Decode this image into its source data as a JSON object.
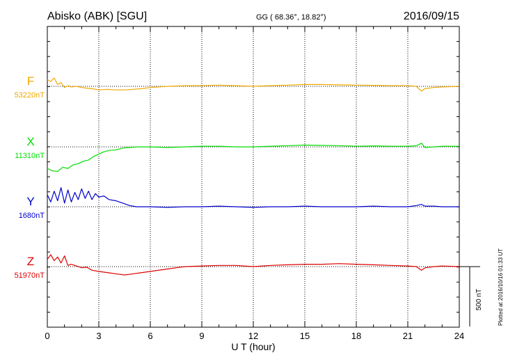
{
  "header": {
    "station": "Abisko (ABK)  [SGU]",
    "coords": "GG ( 68.36°,  18.82°)",
    "date": "2016/09/15"
  },
  "plotted_note": "Plotted at 2016/10/16 01:33 UT",
  "scale_label": "500 nT",
  "chart_data": {
    "type": "line",
    "xlabel": "U T (hour)",
    "xlim": [
      0,
      24
    ],
    "xticks": [
      "0",
      "3",
      "6",
      "9",
      "12",
      "15",
      "18",
      "21",
      "24"
    ],
    "scale_nT": 500,
    "series": [
      {
        "name": "F",
        "baseline_label": "53220nT",
        "color": "#f0a800",
        "x": [
          0,
          0.2,
          0.4,
          0.6,
          0.8,
          1.0,
          1.2,
          1.4,
          1.7,
          2.0,
          2.3,
          2.6,
          3.0,
          3.5,
          4.0,
          4.5,
          5.0,
          5.5,
          6.0,
          7.0,
          8.0,
          9.0,
          10.0,
          11.0,
          12.0,
          13.0,
          14.0,
          15.0,
          16.0,
          17.0,
          18.0,
          19.0,
          20.0,
          21.0,
          21.5,
          21.8,
          22.0,
          22.5,
          23.0,
          24.0
        ],
        "values": [
          55,
          40,
          70,
          15,
          30,
          -10,
          5,
          -5,
          0,
          -10,
          -15,
          -20,
          -30,
          -25,
          -30,
          -30,
          -25,
          -20,
          -10,
          0,
          5,
          5,
          10,
          5,
          0,
          5,
          10,
          15,
          15,
          12,
          10,
          8,
          5,
          5,
          0,
          -40,
          -20,
          -10,
          -5,
          0
        ]
      },
      {
        "name": "X",
        "baseline_label": "11310nT",
        "color": "#00dd00",
        "x": [
          0,
          0.3,
          0.6,
          0.9,
          1.2,
          1.5,
          1.8,
          2.1,
          2.4,
          2.7,
          3.0,
          3.3,
          3.6,
          4.0,
          4.4,
          4.8,
          5.2,
          5.6,
          6.0,
          7.0,
          8.0,
          9.0,
          10.0,
          11.0,
          12.0,
          13.0,
          14.0,
          15.0,
          16.0,
          17.0,
          18.0,
          19.0,
          20.0,
          21.0,
          21.5,
          21.8,
          22.0,
          22.5,
          23.0,
          24.0
        ],
        "values": [
          -180,
          -200,
          -205,
          -170,
          -180,
          -150,
          -140,
          -120,
          -110,
          -80,
          -60,
          -40,
          -30,
          -25,
          -10,
          -5,
          0,
          0,
          0,
          -5,
          0,
          5,
          5,
          0,
          0,
          5,
          10,
          15,
          12,
          10,
          5,
          8,
          5,
          5,
          10,
          30,
          -5,
          0,
          5,
          5
        ]
      },
      {
        "name": "Y",
        "baseline_label": "1680nT",
        "color": "#0000cc",
        "x": [
          0,
          0.2,
          0.4,
          0.6,
          0.8,
          1.0,
          1.2,
          1.4,
          1.6,
          1.8,
          2.0,
          2.2,
          2.4,
          2.6,
          2.8,
          3.0,
          3.3,
          3.6,
          4.0,
          4.4,
          4.8,
          5.2,
          6.0,
          7.0,
          8.0,
          9.0,
          10.0,
          11.0,
          12.0,
          13.0,
          14.0,
          15.0,
          16.0,
          17.0,
          18.0,
          19.0,
          20.0,
          21.0,
          21.5,
          21.8,
          22.0,
          22.5,
          23.0,
          24.0
        ],
        "values": [
          100,
          40,
          130,
          50,
          160,
          30,
          140,
          40,
          120,
          60,
          150,
          70,
          130,
          60,
          110,
          80,
          90,
          60,
          50,
          30,
          10,
          0,
          0,
          -5,
          0,
          0,
          5,
          0,
          -5,
          0,
          0,
          5,
          0,
          0,
          0,
          5,
          0,
          0,
          10,
          20,
          5,
          5,
          0,
          0
        ]
      },
      {
        "name": "Z",
        "baseline_label": "51970nT",
        "color": "#dd0000",
        "x": [
          0,
          0.2,
          0.4,
          0.6,
          0.8,
          1.0,
          1.2,
          1.4,
          1.7,
          2.0,
          2.3,
          2.6,
          3.0,
          3.5,
          4.0,
          4.5,
          5.0,
          5.5,
          6.0,
          7.0,
          8.0,
          9.0,
          10.0,
          11.0,
          12.0,
          13.0,
          14.0,
          15.0,
          16.0,
          17.0,
          18.0,
          19.0,
          20.0,
          21.0,
          21.5,
          21.8,
          22.0,
          22.5,
          23.0,
          24.0
        ],
        "values": [
          60,
          100,
          50,
          80,
          30,
          90,
          10,
          20,
          5,
          -10,
          -5,
          -30,
          -40,
          -50,
          -60,
          -70,
          -60,
          -50,
          -40,
          -20,
          0,
          5,
          10,
          10,
          0,
          10,
          15,
          20,
          20,
          25,
          20,
          15,
          10,
          5,
          0,
          -30,
          -10,
          0,
          5,
          0
        ]
      }
    ]
  }
}
